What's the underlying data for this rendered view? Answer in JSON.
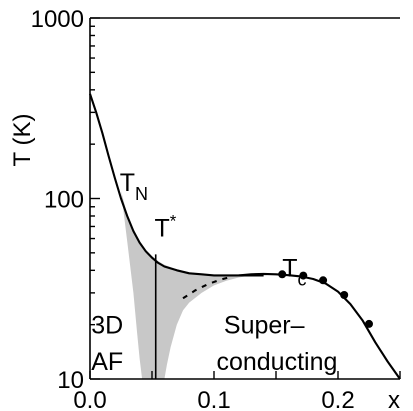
{
  "colors": {
    "shade": "#c8c8c8",
    "line": "#000000",
    "background": "#ffffff"
  },
  "chart_data": {
    "type": "line",
    "ylabel": "T (K)",
    "xlabel": "x",
    "x_axis_end_label": "x",
    "xlim": [
      0.0,
      0.25
    ],
    "ylim": [
      10,
      1000
    ],
    "yscale": "log",
    "grid": false,
    "x_ticks": [
      0.0,
      0.05,
      0.1,
      0.15,
      0.2,
      0.25
    ],
    "x_tick_labels": [
      {
        "value": 0.0,
        "label": "0.0"
      },
      {
        "value": 0.1,
        "label": "0.1"
      },
      {
        "value": 0.2,
        "label": "0.2"
      },
      {
        "value": 0.25,
        "label": "x"
      }
    ],
    "y_tick_labels": [
      {
        "value": 1000,
        "label": "1000"
      },
      {
        "value": 100,
        "label": "100"
      },
      {
        "value": 10,
        "label": "10"
      }
    ],
    "annotations": {
      "tn": {
        "main": "T",
        "sub": "N",
        "x": 0.024,
        "y": 122
      },
      "tstar": {
        "main": "T",
        "sup": "*",
        "x": 0.052,
        "y": 68
      },
      "tc": {
        "main": "T",
        "sub": "c",
        "x": 0.155,
        "y": 41
      },
      "af_line1": {
        "text": "3D",
        "x": 0.001,
        "y": 20
      },
      "af_line2": {
        "text": "AF",
        "x": 0.001,
        "y": 12.6
      },
      "sc_line1": {
        "text": "Super–",
        "x": 0.108,
        "y": 20
      },
      "sc_line2": {
        "text": "conducting",
        "x": 0.102,
        "y": 12.6
      }
    },
    "series": [
      {
        "style": "solid",
        "x": [
          0.0,
          0.005,
          0.01,
          0.015,
          0.02,
          0.025,
          0.03,
          0.035,
          0.04,
          0.045,
          0.05,
          0.055,
          0.06,
          0.07,
          0.08,
          0.09,
          0.1,
          0.11,
          0.12,
          0.13,
          0.14
        ],
        "y": [
          380,
          300,
          230,
          172,
          130,
          100,
          80,
          66,
          57,
          51,
          47,
          44,
          42,
          40,
          38.5,
          38,
          37.5,
          37.5,
          37.5,
          37.5,
          37.5
        ]
      },
      {
        "style": "solid",
        "x": [
          0.12,
          0.13,
          0.14,
          0.15,
          0.16,
          0.17,
          0.18,
          0.19,
          0.2,
          0.21,
          0.22,
          0.23,
          0.24,
          0.25
        ],
        "y": [
          37.5,
          38,
          38.2,
          38,
          37.6,
          37,
          35.8,
          33.8,
          30.5,
          26,
          21,
          16,
          12.5,
          10
        ]
      },
      {
        "style": "dashed",
        "x": [
          0.075,
          0.085,
          0.095,
          0.105,
          0.115
        ],
        "y": [
          28,
          31,
          33.5,
          35.5,
          37
        ]
      },
      {
        "style": "points",
        "x": [
          0.155,
          0.172,
          0.188,
          0.205,
          0.225
        ],
        "y": [
          38,
          37.4,
          35.2,
          29.2,
          20.2
        ]
      },
      {
        "style": "vertical-line",
        "x": [
          0.053,
          0.053
        ],
        "y": [
          10,
          49
        ]
      }
    ],
    "shaded_region": {
      "upper": {
        "x": [
          0.025,
          0.03,
          0.035,
          0.04,
          0.045,
          0.05,
          0.055,
          0.06,
          0.07,
          0.08,
          0.09,
          0.1,
          0.11,
          0.12,
          0.13
        ],
        "y": [
          110,
          82,
          67,
          58,
          52,
          48,
          45,
          43,
          40.5,
          39,
          38.2,
          37.8,
          37.6,
          37.5,
          37.5
        ]
      },
      "lower": {
        "x": [
          0.13,
          0.12,
          0.11,
          0.1,
          0.09,
          0.08,
          0.075,
          0.07,
          0.065,
          0.062,
          0.06,
          0.058,
          0.055,
          0.05,
          0.045,
          0.042,
          0.04,
          0.038,
          0.035,
          0.03,
          0.025
        ],
        "y": [
          37.5,
          36.5,
          35,
          33,
          30,
          26.5,
          24,
          20,
          15,
          12,
          10,
          10,
          10,
          10,
          10,
          10,
          13,
          18,
          30,
          58,
          110
        ]
      }
    }
  }
}
